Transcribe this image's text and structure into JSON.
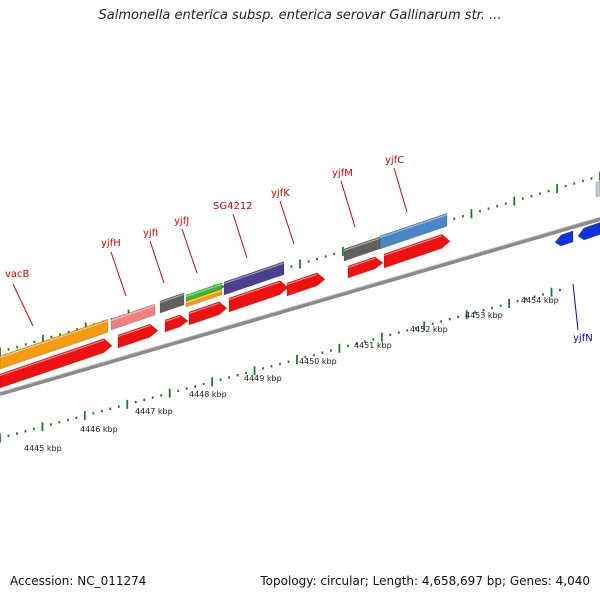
{
  "title": "Salmonella enterica subsp. enterica serovar Gallinarum str. ...",
  "footer": {
    "accession": "Accession: NC_011274",
    "summary": "Topology: circular; Length: 4,658,697 bp; Genes: 4,040"
  },
  "colors": {
    "backbone": "#8a8a8a",
    "tick": "#1f7a1f",
    "forward_gene_label": "#dd0000",
    "reverse_gene_label": "#0000cc",
    "cds": "#ee1111"
  },
  "kbp_labels": [
    "4445 kbp",
    "4446 kbp",
    "4447 kbp",
    "4448 kbp",
    "4449 kbp",
    "4450 kbp",
    "4451 kbp",
    "4452 kbp",
    "4453 kbp",
    "4454 kbp"
  ],
  "genes": [
    {
      "name": "vacB",
      "strand": "forward",
      "color": "#f39c12"
    },
    {
      "name": "yjfH",
      "strand": "forward",
      "color": "#f08080"
    },
    {
      "name": "yjfI",
      "strand": "forward",
      "color": "#606060"
    },
    {
      "name": "yjfJ",
      "strand": "forward",
      "color": "#33bb33"
    },
    {
      "name": "SG4212",
      "strand": "forward",
      "color": "#4b3f8f"
    },
    {
      "name": "yjfK",
      "strand": "forward",
      "color": "#ee1111"
    },
    {
      "name": "yjfM",
      "strand": "forward",
      "color": "#606060"
    },
    {
      "name": "yjfC",
      "strand": "forward",
      "color": "#4a86c5"
    },
    {
      "name": "yjfN",
      "strand": "reverse",
      "color": "#1133dd"
    }
  ]
}
